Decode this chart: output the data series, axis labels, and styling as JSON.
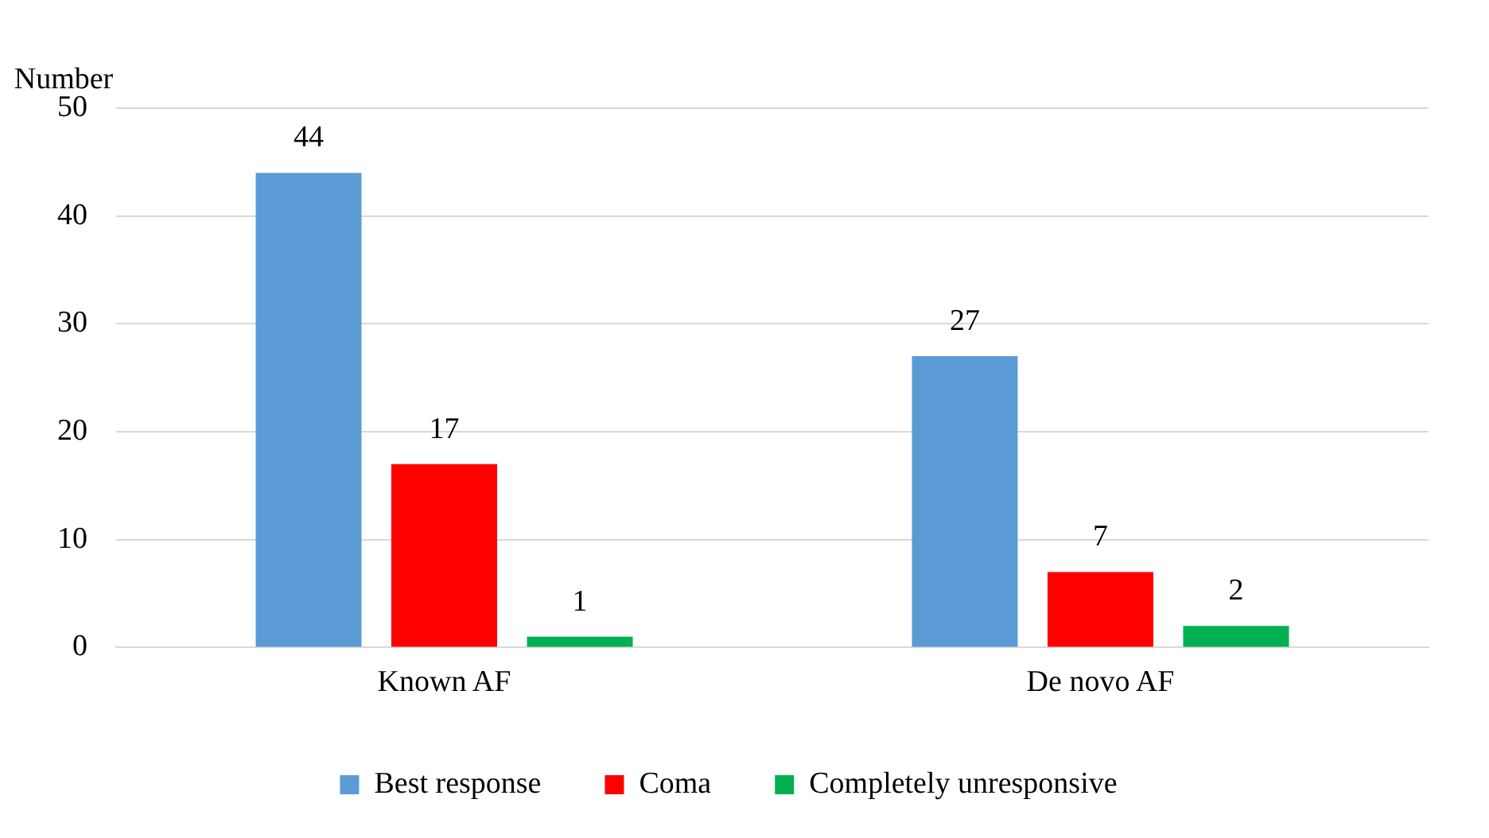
{
  "chart_data": {
    "type": "bar",
    "ylabel": "Number",
    "categories": [
      "Known AF",
      "De novo AF"
    ],
    "series": [
      {
        "name": "Best response",
        "color": "#5b9bd5",
        "values": [
          44,
          27
        ]
      },
      {
        "name": "Coma",
        "color": "#ff0000",
        "values": [
          17,
          7
        ]
      },
      {
        "name": "Completely unresponsive",
        "color": "#00b050",
        "values": [
          1,
          2
        ]
      }
    ],
    "ylim": [
      0,
      50
    ],
    "yticks": [
      0,
      10,
      20,
      30,
      40,
      50
    ],
    "grid": "y",
    "legend": "bottom",
    "data_labels": true
  }
}
